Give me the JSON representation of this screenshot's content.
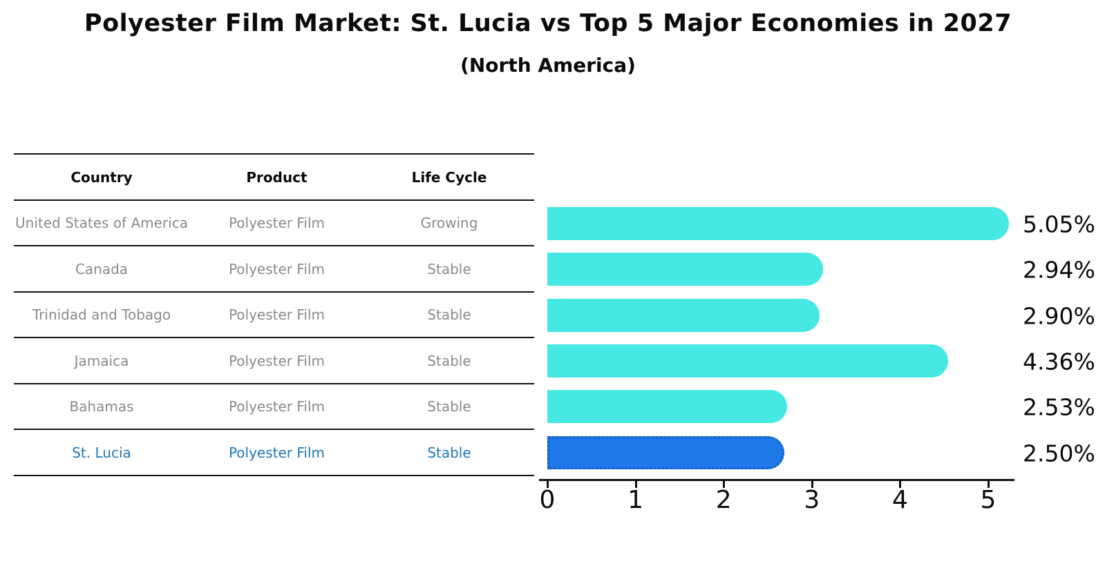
{
  "header": {
    "title": "Polyester Film Market: St. Lucia vs Top 5 Major Economies in 2027",
    "subtitle": "(North America)"
  },
  "table": {
    "columns": [
      "Country",
      "Product",
      "Life Cycle"
    ],
    "rows": [
      {
        "country": "United States of America",
        "product": "Polyester Film",
        "life_cycle": "Growing",
        "highlight": false
      },
      {
        "country": "Canada",
        "product": "Polyester Film",
        "life_cycle": "Stable",
        "highlight": false
      },
      {
        "country": "Trinidad and Tobago",
        "product": "Polyester Film",
        "life_cycle": "Stable",
        "highlight": false
      },
      {
        "country": "Jamaica",
        "product": "Polyester Film",
        "life_cycle": "Stable",
        "highlight": false
      },
      {
        "country": "Bahamas",
        "product": "Polyester Film",
        "life_cycle": "Stable",
        "highlight": false
      },
      {
        "country": "St. Lucia",
        "product": "Polyester Film",
        "life_cycle": "Stable",
        "highlight": true
      }
    ]
  },
  "chart_data": {
    "type": "bar",
    "orientation": "horizontal",
    "title": "Polyester Film Market: St. Lucia vs Top 5 Major Economies in 2027 (North America)",
    "categories": [
      "United States of America",
      "Canada",
      "Trinidad and Tobago",
      "Jamaica",
      "Bahamas",
      "St. Lucia"
    ],
    "values": [
      5.05,
      2.94,
      2.9,
      4.36,
      2.53,
      2.5
    ],
    "labels": [
      "5.05%",
      "2.94%",
      "2.90%",
      "4.36%",
      "2.53%",
      "2.50%"
    ],
    "xticks": [
      "0",
      "1",
      "2",
      "3",
      "4",
      "5"
    ],
    "xtick_values": [
      0,
      1,
      2,
      3,
      4,
      5
    ],
    "xlim": [
      0,
      5.3
    ],
    "grid": false,
    "legend": false,
    "bar_color": "#46e8e4",
    "highlight_index": 5,
    "highlight_color": "#1f78e8",
    "highlight_border_color": "#175dc9",
    "highlight_text_color": "#1f77b4"
  }
}
